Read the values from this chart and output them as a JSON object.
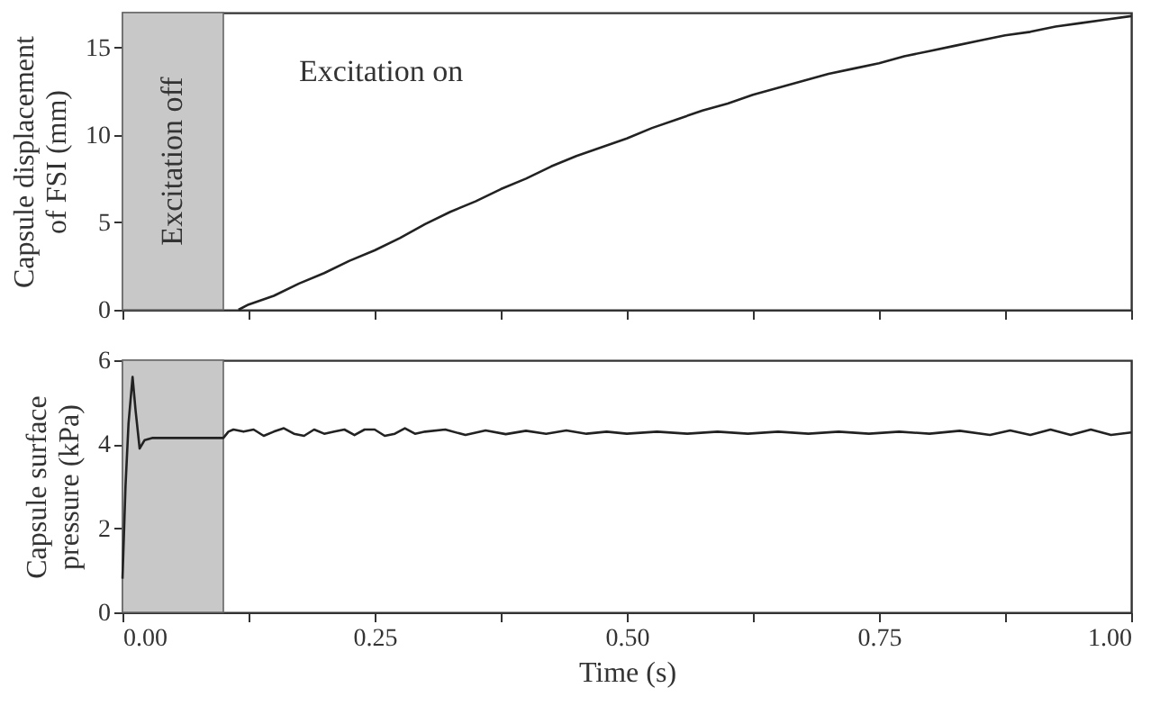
{
  "chart_data": [
    {
      "type": "line",
      "ylabel": "Capsule displacement of FSI (mm)",
      "annotations": [
        "Excitation on"
      ],
      "x": [
        0.115,
        0.125,
        0.15,
        0.175,
        0.2,
        0.225,
        0.25,
        0.275,
        0.3,
        0.325,
        0.35,
        0.375,
        0.4,
        0.425,
        0.45,
        0.475,
        0.5,
        0.525,
        0.55,
        0.575,
        0.6,
        0.625,
        0.65,
        0.675,
        0.7,
        0.725,
        0.75,
        0.775,
        0.8,
        0.825,
        0.85,
        0.875,
        0.9,
        0.925,
        0.95,
        0.975,
        1.0
      ],
      "series": [
        {
          "color": "#222222",
          "values": [
            0,
            0.3,
            0.8,
            1.5,
            2.1,
            2.8,
            3.4,
            4.1,
            4.9,
            5.6,
            6.2,
            6.9,
            7.5,
            8.2,
            8.8,
            9.3,
            9.8,
            10.4,
            10.9,
            11.4,
            11.8,
            12.3,
            12.7,
            13.1,
            13.5,
            13.8,
            14.1,
            14.5,
            14.8,
            15.1,
            15.4,
            15.7,
            15.9,
            16.2,
            16.4,
            16.6,
            16.8
          ]
        }
      ],
      "bands": [
        {
          "axis": "x",
          "from": 0,
          "to": 0.1,
          "label": "Excitation off",
          "color": "#c8c8c8"
        }
      ],
      "xlim": [
        0,
        1
      ],
      "xticks": [
        0,
        {
          "value": 0.125,
          "label": null
        },
        0.25,
        {
          "value": 0.375,
          "label": null
        },
        0.5,
        {
          "value": 0.625,
          "label": null
        },
        0.75,
        {
          "value": 0.875,
          "label": null
        },
        1
      ],
      "ylim": [
        0,
        17
      ],
      "yticks": [
        0,
        5,
        10,
        15
      ],
      "tick_labels": "y",
      "grid": false
    },
    {
      "type": "line",
      "xlabel": "Time (s)",
      "ylabel": "Capsule surface pressure (kPa)",
      "x": [
        0,
        0.003,
        0.006,
        0.01,
        0.013,
        0.017,
        0.022,
        0.03,
        0.05,
        0.1,
        0.105,
        0.11,
        0.12,
        0.13,
        0.14,
        0.15,
        0.16,
        0.17,
        0.18,
        0.19,
        0.2,
        0.21,
        0.22,
        0.23,
        0.24,
        0.25,
        0.26,
        0.27,
        0.28,
        0.29,
        0.3,
        0.32,
        0.34,
        0.36,
        0.38,
        0.4,
        0.42,
        0.44,
        0.46,
        0.48,
        0.5,
        0.53,
        0.56,
        0.59,
        0.62,
        0.65,
        0.68,
        0.71,
        0.74,
        0.77,
        0.8,
        0.83,
        0.86,
        0.88,
        0.9,
        0.92,
        0.94,
        0.96,
        0.98,
        1.0
      ],
      "series": [
        {
          "color": "#222222",
          "values": [
            0.8,
            3.0,
            4.5,
            5.6,
            4.8,
            3.9,
            4.1,
            4.15,
            4.15,
            4.15,
            4.3,
            4.35,
            4.3,
            4.35,
            4.2,
            4.3,
            4.38,
            4.25,
            4.2,
            4.35,
            4.25,
            4.3,
            4.35,
            4.22,
            4.35,
            4.35,
            4.2,
            4.25,
            4.38,
            4.25,
            4.3,
            4.35,
            4.22,
            4.33,
            4.24,
            4.32,
            4.25,
            4.33,
            4.25,
            4.3,
            4.25,
            4.3,
            4.25,
            4.3,
            4.25,
            4.3,
            4.25,
            4.3,
            4.25,
            4.3,
            4.25,
            4.32,
            4.22,
            4.33,
            4.22,
            4.35,
            4.22,
            4.35,
            4.22,
            4.28
          ]
        }
      ],
      "bands": [
        {
          "axis": "x",
          "from": 0,
          "to": 0.1,
          "label": null,
          "color": "#c8c8c8"
        }
      ],
      "xlim": [
        0,
        1
      ],
      "xticks": [
        {
          "value": 0,
          "label": "0.00"
        },
        {
          "value": 0.125,
          "label": null
        },
        {
          "value": 0.25,
          "label": "0.25"
        },
        {
          "value": 0.375,
          "label": null
        },
        {
          "value": 0.5,
          "label": "0.50"
        },
        {
          "value": 0.625,
          "label": null
        },
        {
          "value": 0.75,
          "label": "0.75"
        },
        {
          "value": 0.875,
          "label": null
        },
        {
          "value": 1,
          "label": "1.00"
        }
      ],
      "ylim": [
        0,
        6
      ],
      "yticks": [
        0,
        2,
        4,
        6
      ],
      "grid": false
    }
  ]
}
